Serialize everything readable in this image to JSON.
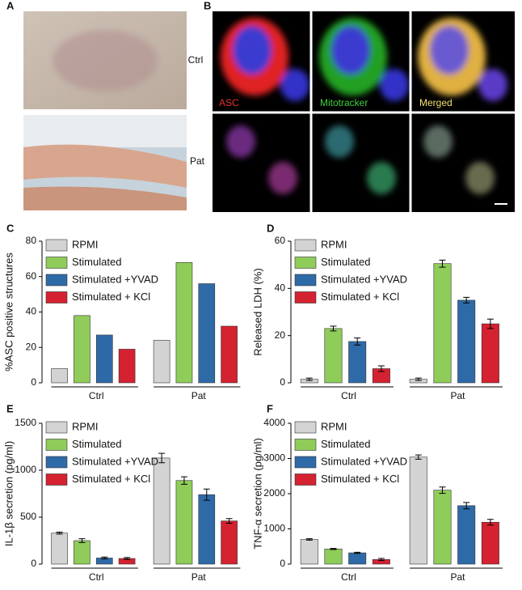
{
  "panel_labels": [
    "A",
    "B",
    "C",
    "D",
    "E",
    "F"
  ],
  "microscopy": {
    "rows": [
      "Ctrl",
      "Pat"
    ],
    "channels": [
      "ASC",
      "Mitotracker",
      "Merged"
    ]
  },
  "chart_data": [
    {
      "type": "bar",
      "ylabel": "%ASC positive structures",
      "categories": [
        "Ctrl",
        "Pat"
      ],
      "ylim": [
        0,
        80
      ],
      "yticks": [
        0,
        20,
        40,
        60,
        80
      ],
      "series": [
        {
          "name": "RPMI",
          "color": "#d3d3d3",
          "values": [
            8,
            24
          ]
        },
        {
          "name": "Stimulated",
          "color": "#8fcc5a",
          "values": [
            38,
            68
          ]
        },
        {
          "name": "Stimulated +YVAD",
          "color": "#2f6aa8",
          "values": [
            27,
            56
          ]
        },
        {
          "name": "Stimulated + KCl",
          "color": "#d42231",
          "values": [
            19,
            32
          ]
        }
      ]
    },
    {
      "type": "bar",
      "ylabel": "Released LDH (%)",
      "categories": [
        "Ctrl",
        "Pat"
      ],
      "ylim": [
        0,
        60
      ],
      "yticks": [
        0,
        20,
        40,
        60
      ],
      "series": [
        {
          "name": "RPMI",
          "color": "#d3d3d3",
          "values": [
            1.5,
            1.5
          ],
          "errors": [
            0.5,
            0.5
          ]
        },
        {
          "name": "Stimulated",
          "color": "#8fcc5a",
          "values": [
            23,
            50.5
          ],
          "errors": [
            1,
            1.5
          ]
        },
        {
          "name": "Stimulated +YVAD",
          "color": "#2f6aa8",
          "values": [
            17.5,
            35
          ],
          "errors": [
            1.5,
            1.2
          ]
        },
        {
          "name": "Stimulated + KCl",
          "color": "#d42231",
          "values": [
            6,
            25
          ],
          "errors": [
            1.2,
            2
          ]
        }
      ]
    },
    {
      "type": "bar",
      "ylabel": "IL-1β secretion (pg/ml)",
      "categories": [
        "Ctrl",
        "Pat"
      ],
      "ylim": [
        0,
        1500
      ],
      "yticks": [
        0,
        500,
        1000,
        1500
      ],
      "series": [
        {
          "name": "RPMI",
          "color": "#d3d3d3",
          "values": [
            330,
            1130
          ],
          "errors": [
            10,
            50
          ]
        },
        {
          "name": "Stimulated",
          "color": "#8fcc5a",
          "values": [
            250,
            890
          ],
          "errors": [
            20,
            40
          ]
        },
        {
          "name": "Stimulated +YVAD",
          "color": "#2f6aa8",
          "values": [
            65,
            740
          ],
          "errors": [
            10,
            60
          ]
        },
        {
          "name": "Stimulated + KCl",
          "color": "#d42231",
          "values": [
            60,
            460
          ],
          "errors": [
            10,
            25
          ]
        }
      ]
    },
    {
      "type": "bar",
      "ylabel": "TNF-α secretion (pg/ml)",
      "categories": [
        "Ctrl",
        "Pat"
      ],
      "ylim": [
        0,
        4000
      ],
      "yticks": [
        0,
        1000,
        2000,
        3000,
        4000
      ],
      "series": [
        {
          "name": "RPMI",
          "color": "#d3d3d3",
          "values": [
            700,
            3040
          ],
          "errors": [
            20,
            60
          ]
        },
        {
          "name": "Stimulated",
          "color": "#8fcc5a",
          "values": [
            430,
            2100
          ],
          "errors": [
            15,
            90
          ]
        },
        {
          "name": "Stimulated +YVAD",
          "color": "#2f6aa8",
          "values": [
            320,
            1660
          ],
          "errors": [
            15,
            90
          ]
        },
        {
          "name": "Stimulated + KCl",
          "color": "#d42231",
          "values": [
            130,
            1190
          ],
          "errors": [
            30,
            80
          ]
        }
      ]
    }
  ]
}
